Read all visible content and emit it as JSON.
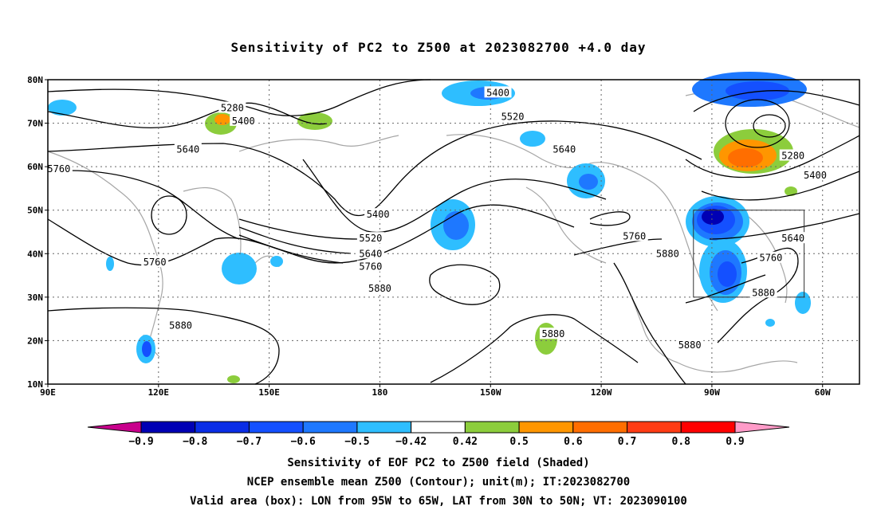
{
  "title": "Sensitivity of PC2 to Z500 at 2023082700 +4.0 day",
  "lat_ticks": [
    "80N",
    "70N",
    "60N",
    "50N",
    "40N",
    "30N",
    "20N",
    "10N"
  ],
  "lon_ticks": [
    "90E",
    "120E",
    "150E",
    "180",
    "150W",
    "120W",
    "90W",
    "60W"
  ],
  "contour_labels": [
    {
      "text": "5280",
      "lon": 140,
      "lat": 73.5
    },
    {
      "text": "5400",
      "lon": 143,
      "lat": 70.5
    },
    {
      "text": "5640",
      "lon": 128,
      "lat": 64
    },
    {
      "text": "5760",
      "lon": 93,
      "lat": 59.5
    },
    {
      "text": "5760",
      "lon": 119,
      "lat": 38
    },
    {
      "text": "5880",
      "lon": 126,
      "lat": 23.5
    },
    {
      "text": "5400",
      "lon": -148,
      "lat": 77
    },
    {
      "text": "5520",
      "lon": -144,
      "lat": 71.5
    },
    {
      "text": "5640",
      "lon": -130,
      "lat": 64
    },
    {
      "text": "5400",
      "lon": -180.5,
      "lat": 49
    },
    {
      "text": "5520",
      "lon": -182.5,
      "lat": 43.5
    },
    {
      "text": "5640",
      "lon": -182.5,
      "lat": 40
    },
    {
      "text": "5760",
      "lon": -182.5,
      "lat": 37
    },
    {
      "text": "5880",
      "lon": -180,
      "lat": 32
    },
    {
      "text": "5760",
      "lon": -111,
      "lat": 44
    },
    {
      "text": "5880",
      "lon": -102,
      "lat": 40
    },
    {
      "text": "5880",
      "lon": -133,
      "lat": 21.5
    },
    {
      "text": "5880",
      "lon": -96,
      "lat": 19
    },
    {
      "text": "5280",
      "lon": -68,
      "lat": 62.5
    },
    {
      "text": "5400",
      "lon": -62,
      "lat": 58
    },
    {
      "text": "5640",
      "lon": -68,
      "lat": 43.5
    },
    {
      "text": "5760",
      "lon": -74,
      "lat": 39
    },
    {
      "text": "5880",
      "lon": -76,
      "lat": 31
    }
  ],
  "colorbar": {
    "labels": [
      "−0.9",
      "−0.8",
      "−0.7",
      "−0.6",
      "−0.5",
      "−0.42",
      "0.42",
      "0.5",
      "0.6",
      "0.7",
      "0.8",
      "0.9"
    ],
    "colors": [
      "#0000b4",
      "#0a2de6",
      "#1450ff",
      "#1e78ff",
      "#2ebeff",
      "#ffffff",
      "#8ccd3c",
      "#ff9600",
      "#ff6e00",
      "#ff3c14",
      "#ff0000"
    ],
    "low_color": "#c8008c",
    "high_color": "#ff9bc8"
  },
  "caption": [
    "Sensitivity of EOF PC2 to Z500 field (Shaded)",
    "NCEP ensemble mean Z500 (Contour); unit(m); IT:2023082700",
    "Valid area (box): LON from 95W to 65W, LAT from 30N to 50N; VT: 2023090100"
  ],
  "valid_box": {
    "lon_min": -95,
    "lon_max": -65,
    "lat_min": 30,
    "lat_max": 50
  }
}
